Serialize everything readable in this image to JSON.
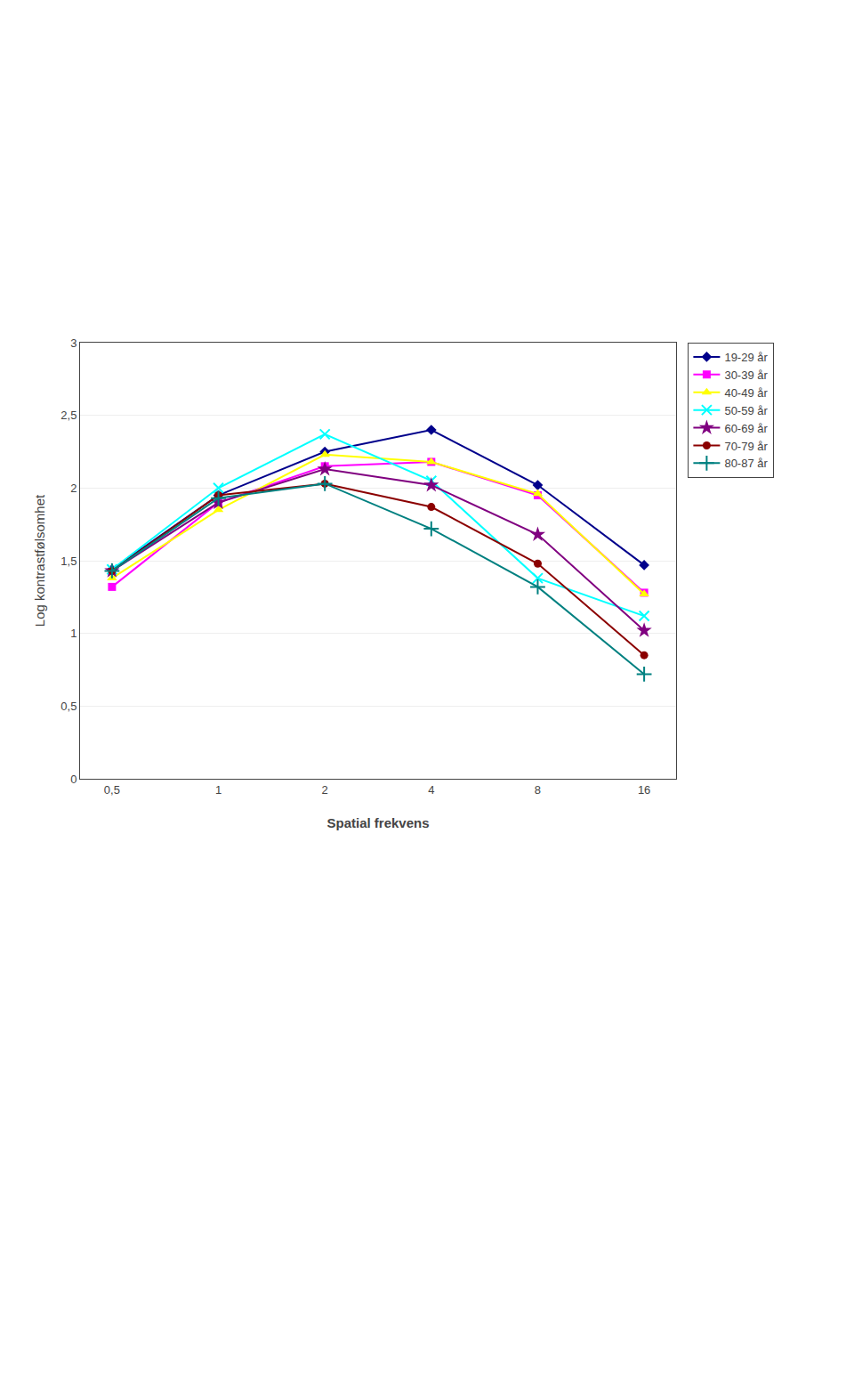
{
  "chart_data": {
    "type": "line",
    "x_title": "Spatial frekvens",
    "y_title": "Log kontrastfølsomhet",
    "x": [
      0.5,
      1,
      2,
      4,
      8,
      16
    ],
    "log": "x",
    "xlim": [
      0.40612619817811774,
      19.698310613518657
    ],
    "xticks": [
      {
        "value": 0.5,
        "label": "0,5"
      },
      1,
      2,
      4,
      8,
      16
    ],
    "ylim": [
      0,
      3
    ],
    "yticks": [
      0,
      {
        "value": 0.5,
        "label": "0,5"
      },
      1,
      {
        "value": 1.5,
        "label": "1,5"
      },
      2,
      {
        "value": 2.5,
        "label": "2,5"
      },
      3
    ],
    "grid": "y",
    "legend": "right",
    "series": [
      {
        "name": "19-29 år",
        "color": "#00008B",
        "marker": "diamond",
        "values": [
          1.44,
          1.95,
          2.25,
          2.4,
          2.02,
          1.47
        ]
      },
      {
        "name": "30-39 år",
        "color": "#FF00FF",
        "marker": "square",
        "values": [
          1.32,
          1.9,
          2.15,
          2.18,
          1.95,
          1.28
        ]
      },
      {
        "name": "40-49 år",
        "color": "#FFFF00",
        "marker": "triangle-up",
        "values": [
          1.38,
          1.85,
          2.23,
          2.18,
          1.96,
          1.27
        ]
      },
      {
        "name": "50-59 år",
        "color": "#00FFFF",
        "marker": "x",
        "values": [
          1.44,
          2.0,
          2.37,
          2.05,
          1.38,
          1.12
        ]
      },
      {
        "name": "60-69 år",
        "color": "#800080",
        "marker": "star",
        "values": [
          1.43,
          1.9,
          2.13,
          2.02,
          1.68,
          1.02
        ]
      },
      {
        "name": "70-79 år",
        "color": "#8B0000",
        "marker": "circle",
        "values": [
          1.43,
          1.95,
          2.03,
          1.87,
          1.48,
          0.85
        ]
      },
      {
        "name": "80-87 år",
        "color": "#008080",
        "marker": "plus",
        "values": [
          1.43,
          1.93,
          2.03,
          1.72,
          1.32,
          0.72
        ]
      }
    ]
  }
}
